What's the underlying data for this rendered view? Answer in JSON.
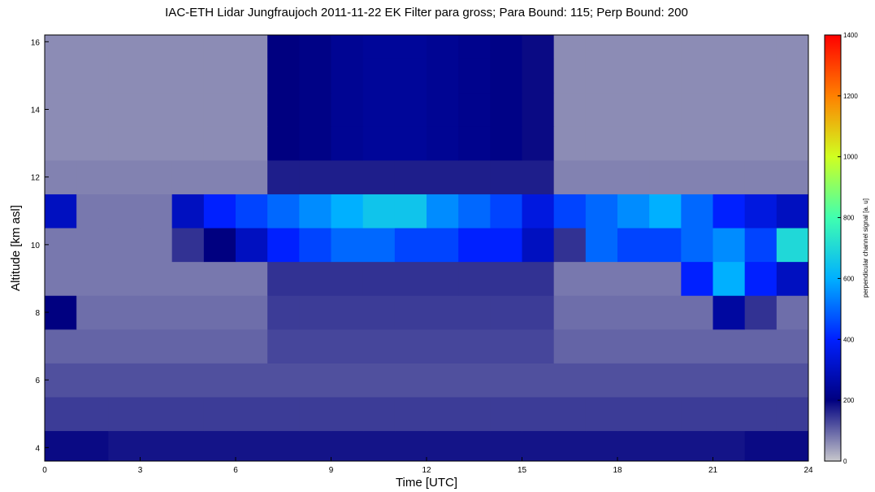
{
  "chart_data": {
    "type": "heatmap",
    "title": "IAC-ETH Lidar Jungfraujoch 2011-11-22 EK Filter para gross; Para Bound: 115; Perp Bound: 200",
    "xlabel": "Time [UTC]",
    "ylabel": "Altitude [km asl]",
    "colorbar_label": "perpendicular channel signal [a. u]",
    "xlim": [
      0,
      24
    ],
    "ylim": [
      3.6,
      16.2
    ],
    "xticks": [
      0,
      3,
      6,
      9,
      12,
      15,
      18,
      21,
      24
    ],
    "yticks": [
      4,
      6,
      8,
      10,
      12,
      14,
      16
    ],
    "clim": [
      0,
      1400
    ],
    "cticks": [
      0,
      200,
      400,
      600,
      800,
      1000,
      1200,
      1400
    ],
    "colormap": [
      "#c8c8cc",
      "#000080",
      "#0020ff",
      "#00b0ff",
      "#40ffb0",
      "#d0ff20",
      "#ff8000",
      "#ff0000"
    ],
    "x_edges": [
      0,
      1,
      2,
      3,
      4,
      5,
      6,
      7,
      8,
      9,
      10,
      11,
      12,
      13,
      14,
      15,
      16,
      17,
      18,
      19,
      20,
      21,
      22,
      23,
      24
    ],
    "y_edges": [
      3.6,
      4.5,
      5.5,
      6.5,
      7.5,
      8.5,
      9.5,
      10.5,
      11.5,
      12.5,
      13.5,
      14.5,
      15.5,
      16.2
    ],
    "z": [
      [
        190,
        190,
        180,
        180,
        180,
        180,
        180,
        180,
        180,
        180,
        180,
        180,
        180,
        180,
        180,
        180,
        180,
        180,
        180,
        180,
        180,
        180,
        190,
        190
      ],
      [
        140,
        140,
        140,
        140,
        140,
        140,
        140,
        140,
        140,
        140,
        140,
        140,
        140,
        140,
        140,
        140,
        140,
        140,
        140,
        140,
        140,
        140,
        140,
        140
      ],
      [
        120,
        120,
        120,
        120,
        120,
        120,
        120,
        120,
        120,
        120,
        120,
        120,
        120,
        120,
        120,
        120,
        120,
        120,
        120,
        120,
        120,
        120,
        120,
        120
      ],
      [
        100,
        100,
        100,
        100,
        100,
        100,
        100,
        130,
        130,
        130,
        130,
        130,
        130,
        130,
        130,
        130,
        100,
        100,
        100,
        100,
        100,
        100,
        100,
        100
      ],
      [
        200,
        90,
        90,
        90,
        90,
        90,
        90,
        140,
        140,
        140,
        140,
        140,
        140,
        140,
        140,
        140,
        90,
        90,
        90,
        90,
        90,
        250,
        150,
        90
      ],
      [
        80,
        80,
        80,
        80,
        80,
        80,
        80,
        150,
        150,
        150,
        150,
        150,
        150,
        150,
        150,
        150,
        80,
        80,
        80,
        80,
        400,
        600,
        400,
        300
      ],
      [
        80,
        80,
        80,
        80,
        150,
        200,
        300,
        400,
        450,
        500,
        500,
        450,
        450,
        400,
        400,
        300,
        150,
        500,
        450,
        450,
        500,
        550,
        450,
        700
      ],
      [
        300,
        80,
        80,
        80,
        300,
        400,
        450,
        500,
        550,
        600,
        650,
        650,
        550,
        500,
        450,
        350,
        450,
        500,
        550,
        600,
        500,
        400,
        350,
        300
      ],
      [
        70,
        70,
        70,
        70,
        70,
        70,
        70,
        170,
        170,
        170,
        170,
        170,
        170,
        170,
        170,
        170,
        70,
        70,
        70,
        70,
        70,
        70,
        70,
        70
      ],
      [
        60,
        60,
        60,
        60,
        60,
        60,
        60,
        200,
        210,
        230,
        240,
        240,
        230,
        220,
        210,
        190,
        60,
        60,
        60,
        60,
        60,
        60,
        60,
        60
      ],
      [
        60,
        60,
        60,
        60,
        60,
        60,
        60,
        200,
        210,
        230,
        240,
        240,
        230,
        220,
        210,
        190,
        60,
        60,
        60,
        60,
        60,
        60,
        60,
        60
      ],
      [
        60,
        60,
        60,
        60,
        60,
        60,
        60,
        200,
        210,
        230,
        240,
        240,
        230,
        220,
        210,
        190,
        60,
        60,
        60,
        60,
        60,
        60,
        60,
        60
      ],
      [
        60,
        60,
        60,
        60,
        60,
        60,
        60,
        200,
        210,
        230,
        240,
        240,
        230,
        220,
        210,
        190,
        60,
        60,
        60,
        60,
        60,
        60,
        60,
        60
      ]
    ]
  }
}
